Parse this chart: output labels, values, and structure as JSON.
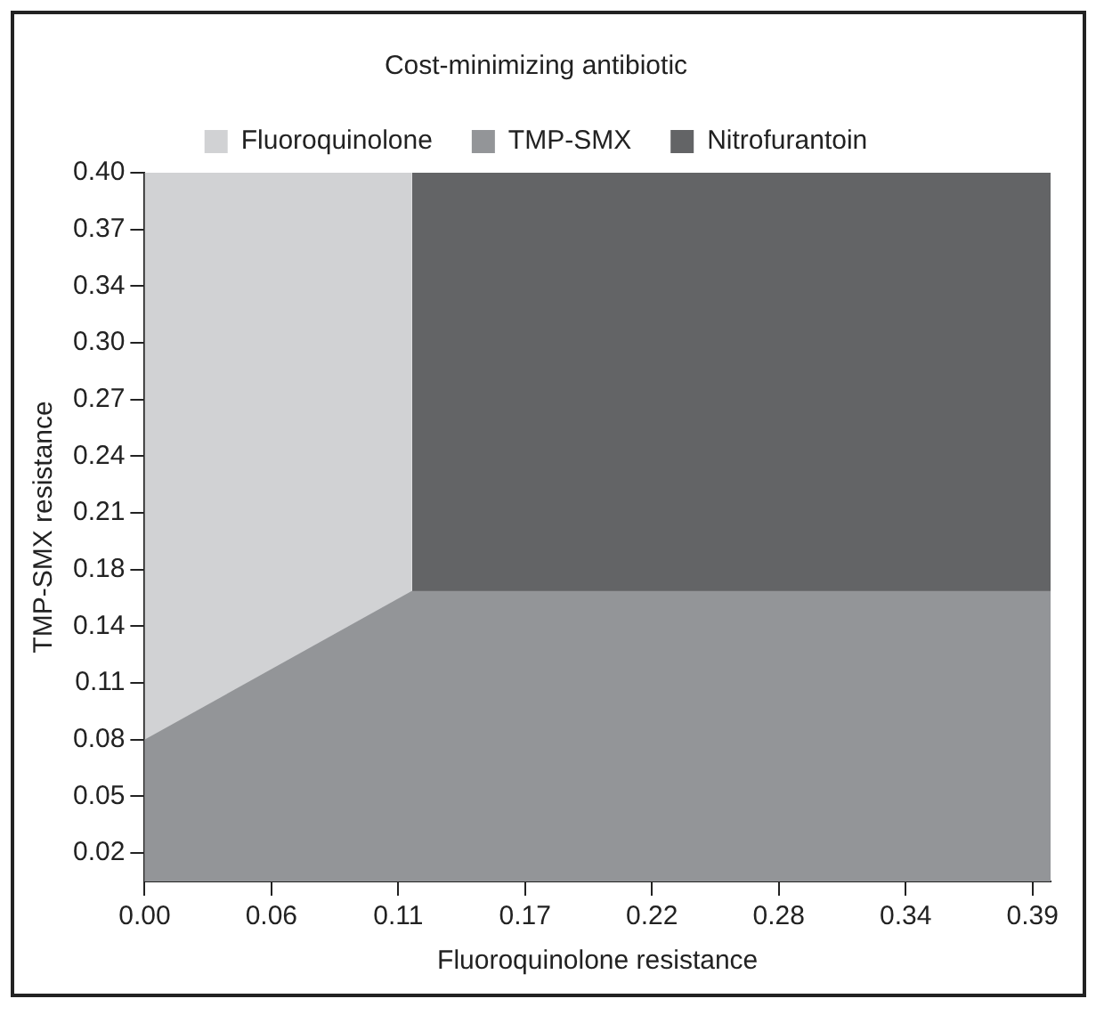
{
  "chart_data": {
    "type": "area",
    "legend_title": "Cost-minimizing antibiotic",
    "xlabel": "Fluoroquinolone resistance",
    "ylabel": "TMP-SMX resistance",
    "xlim": [
      0,
      0.4
    ],
    "ylim": [
      0,
      0.4
    ],
    "xticks": [
      {
        "value": 0,
        "label": "0.00"
      },
      {
        "value": 0.056,
        "label": "0.06"
      },
      {
        "value": 0.112,
        "label": "0.11"
      },
      {
        "value": 0.168,
        "label": "0.17"
      },
      {
        "value": 0.224,
        "label": "0.22"
      },
      {
        "value": 0.28,
        "label": "0.28"
      },
      {
        "value": 0.336,
        "label": "0.34"
      },
      {
        "value": 0.392,
        "label": "0.39"
      }
    ],
    "yticks": [
      {
        "value": 0.016,
        "label": "0.02"
      },
      {
        "value": 0.048,
        "label": "0.05"
      },
      {
        "value": 0.08,
        "label": "0.08"
      },
      {
        "value": 0.112,
        "label": "0.11"
      },
      {
        "value": 0.144,
        "label": "0.14"
      },
      {
        "value": 0.176,
        "label": "0.18"
      },
      {
        "value": 0.208,
        "label": "0.21"
      },
      {
        "value": 0.24,
        "label": "0.24"
      },
      {
        "value": 0.272,
        "label": "0.27"
      },
      {
        "value": 0.304,
        "label": "0.30"
      },
      {
        "value": 0.336,
        "label": "0.34"
      },
      {
        "value": 0.368,
        "label": "0.37"
      },
      {
        "value": 0.4,
        "label": "0.40"
      }
    ],
    "legend": "top",
    "grid": false,
    "marker": "none",
    "series": [
      {
        "name": "Fluoroquinolone",
        "color": "#d1d2d4",
        "x": [
          0,
          0.118
        ],
        "values": [
          0.4,
          0.4
        ]
      },
      {
        "name": "TMP-SMX",
        "color": "#939598",
        "x": [
          0,
          0.118,
          0.4
        ],
        "values": [
          0.08,
          0.164,
          0.164
        ]
      },
      {
        "name": "Nitrofurantoin",
        "color": "#636466",
        "x": [
          0.118,
          0.4
        ],
        "values": [
          0.4,
          0.4
        ]
      }
    ]
  }
}
